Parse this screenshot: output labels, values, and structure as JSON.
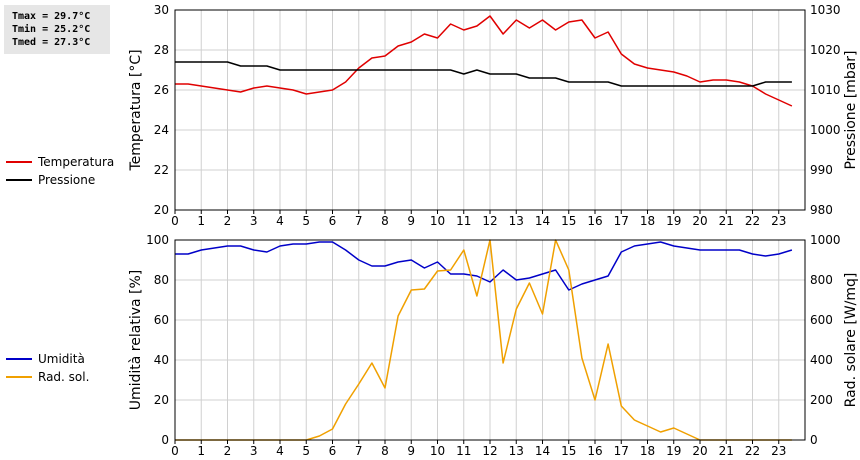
{
  "stats": {
    "tmax": "Tmax = 29.7°C",
    "tmin": "Tmin = 25.2°C",
    "tmed": "Tmed = 27.3°C"
  },
  "legend_top": [
    {
      "label": "Temperatura",
      "color": "#e00000"
    },
    {
      "label": "Pressione",
      "color": "#000000"
    }
  ],
  "legend_bottom": [
    {
      "label": "Umidità",
      "color": "#0000c8"
    },
    {
      "label": "Rad. sol.",
      "color": "#f0a000"
    }
  ],
  "chart_data": [
    {
      "type": "line",
      "x": [
        0,
        0.5,
        1,
        1.5,
        2,
        2.5,
        3,
        3.5,
        4,
        4.5,
        5,
        5.5,
        6,
        6.5,
        7,
        7.5,
        8,
        8.5,
        9,
        9.5,
        10,
        10.5,
        11,
        11.5,
        12,
        12.5,
        13,
        13.5,
        14,
        14.5,
        15,
        15.5,
        16,
        16.5,
        17,
        17.5,
        18,
        18.5,
        19,
        19.5,
        20,
        20.5,
        21,
        21.5,
        22,
        22.5,
        23,
        23.5
      ],
      "xticks": [
        "0",
        "1",
        "2",
        "3",
        "4",
        "5",
        "6",
        "7",
        "8",
        "9",
        "10",
        "11",
        "12",
        "13",
        "14",
        "15",
        "16",
        "17",
        "18",
        "19",
        "20",
        "21",
        "22",
        "23"
      ],
      "xlim": [
        0,
        24
      ],
      "ylabel": "Temperatura [°C]",
      "ylim": [
        20,
        30
      ],
      "yticks": [
        "20",
        "22",
        "24",
        "26",
        "28",
        "30"
      ],
      "y2label": "Pressione [mbar]",
      "y2lim": [
        980,
        1030
      ],
      "y2ticks": [
        "980",
        "990",
        "1000",
        "1010",
        "1020",
        "1030"
      ],
      "grid": true,
      "series": [
        {
          "name": "Temperatura",
          "color": "#e00000",
          "axis": "left",
          "values": [
            26.3,
            26.3,
            26.2,
            26.1,
            26.0,
            25.9,
            26.1,
            26.2,
            26.1,
            26.0,
            25.8,
            25.9,
            26.0,
            26.4,
            27.1,
            27.6,
            27.7,
            28.2,
            28.4,
            28.8,
            28.6,
            29.3,
            29.0,
            29.2,
            29.7,
            28.8,
            29.5,
            29.1,
            29.5,
            29.0,
            29.4,
            29.5,
            28.6,
            28.9,
            27.8,
            27.3,
            27.1,
            27.0,
            26.9,
            26.7,
            26.4,
            26.5,
            26.5,
            26.4,
            26.2,
            25.8,
            25.5,
            25.2
          ]
        },
        {
          "name": "Pressione",
          "color": "#000000",
          "axis": "right",
          "values": [
            1017,
            1017,
            1017,
            1017,
            1017,
            1016,
            1016,
            1016,
            1015,
            1015,
            1015,
            1015,
            1015,
            1015,
            1015,
            1015,
            1015,
            1015,
            1015,
            1015,
            1015,
            1015,
            1014,
            1015,
            1014,
            1014,
            1014,
            1013,
            1013,
            1013,
            1012,
            1012,
            1012,
            1012,
            1011,
            1011,
            1011,
            1011,
            1011,
            1011,
            1011,
            1011,
            1011,
            1011,
            1011,
            1012,
            1012,
            1012
          ]
        }
      ]
    },
    {
      "type": "line",
      "x": [
        0,
        0.5,
        1,
        1.5,
        2,
        2.5,
        3,
        3.5,
        4,
        4.5,
        5,
        5.5,
        6,
        6.5,
        7,
        7.5,
        8,
        8.5,
        9,
        9.5,
        10,
        10.5,
        11,
        11.5,
        12,
        12.5,
        13,
        13.5,
        14,
        14.5,
        15,
        15.5,
        16,
        16.5,
        17,
        17.5,
        18,
        18.5,
        19,
        19.5,
        20,
        20.5,
        21,
        21.5,
        22,
        22.5,
        23,
        23.5
      ],
      "xticks": [
        "0",
        "1",
        "2",
        "3",
        "4",
        "5",
        "6",
        "7",
        "8",
        "9",
        "10",
        "11",
        "12",
        "13",
        "14",
        "15",
        "16",
        "17",
        "18",
        "19",
        "20",
        "21",
        "22",
        "23"
      ],
      "xlim": [
        0,
        24
      ],
      "ylabel": "Umidità relativa [%]",
      "ylim": [
        0,
        100
      ],
      "yticks": [
        "0",
        "20",
        "40",
        "60",
        "80",
        "100"
      ],
      "y2label": "Rad. solare [W/mq]",
      "y2lim": [
        0,
        1000
      ],
      "y2ticks": [
        "0",
        "200",
        "400",
        "600",
        "800",
        "1000"
      ],
      "grid": true,
      "series": [
        {
          "name": "Umidità",
          "color": "#0000c8",
          "axis": "left",
          "values": [
            93,
            93,
            95,
            96,
            97,
            97,
            95,
            94,
            97,
            98,
            98,
            99,
            99,
            95,
            90,
            87,
            87,
            89,
            90,
            86,
            89,
            83,
            83,
            82,
            79,
            85,
            80,
            81,
            83,
            85,
            75,
            78,
            80,
            82,
            94,
            97,
            98,
            99,
            97,
            96,
            95,
            95,
            95,
            95,
            93,
            92,
            93,
            95
          ]
        },
        {
          "name": "Rad. sol.",
          "color": "#f0a000",
          "axis": "right",
          "values": [
            0,
            0,
            0,
            0,
            0,
            0,
            0,
            0,
            0,
            0,
            0,
            20,
            55,
            180,
            280,
            385,
            260,
            620,
            750,
            755,
            845,
            850,
            950,
            720,
            1000,
            385,
            655,
            785,
            630,
            1000,
            850,
            410,
            200,
            480,
            170,
            100,
            70,
            40,
            60,
            30,
            0,
            0,
            0,
            0,
            0,
            0,
            0,
            0
          ]
        }
      ]
    }
  ]
}
